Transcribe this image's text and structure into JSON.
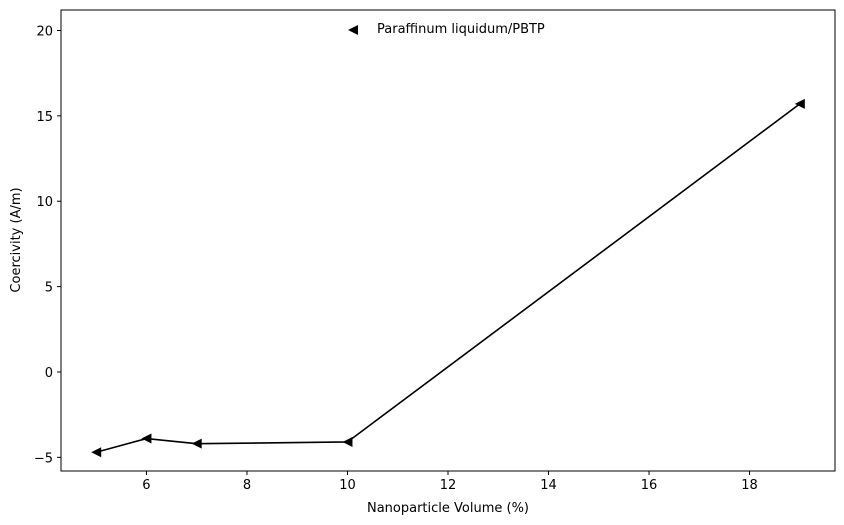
{
  "chart_data": {
    "type": "line",
    "title": "",
    "xlabel": "Nanoparticle Volume (%)",
    "ylabel": "Coercivity (A/m)",
    "xlim": [
      4.3,
      19.7
    ],
    "ylim": [
      -5.8,
      21.2
    ],
    "xticks": [
      6,
      8,
      10,
      12,
      14,
      16,
      18
    ],
    "yticks": [
      -5,
      0,
      5,
      10,
      15,
      20
    ],
    "grid": false,
    "legend_position": "top-center",
    "colors": {
      "line": "#000000",
      "marker": "#000000",
      "axes": "#000000"
    },
    "marker": "triangle-left",
    "series": [
      {
        "name": "Paraffinum liquidum/PBTP",
        "x": [
          5,
          6,
          7,
          10,
          19
        ],
        "y": [
          -4.7,
          -3.9,
          -4.2,
          -4.1,
          15.7
        ]
      }
    ]
  }
}
